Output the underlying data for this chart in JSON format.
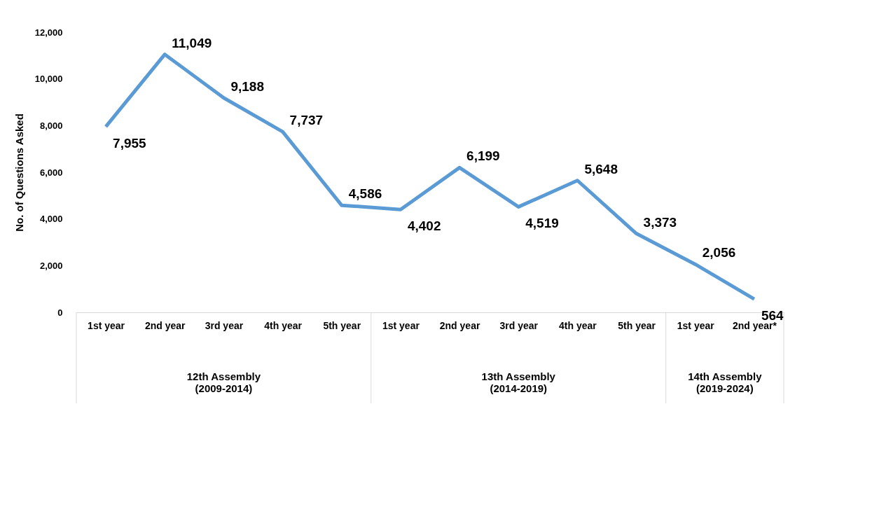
{
  "chart_data": {
    "type": "line",
    "categories": [
      "1st year",
      "2nd year",
      "3rd year",
      "4th year",
      "5th year",
      "1st year",
      "2nd year",
      "3rd year",
      "4th year",
      "5th year",
      "1st year",
      "2nd year*"
    ],
    "series": [
      {
        "color": "#5b9bd5",
        "values": [
          7955,
          11049,
          9188,
          7737,
          4586,
          4402,
          6199,
          4519,
          5648,
          3373,
          2056,
          564
        ],
        "value_labels": [
          "7,955",
          "11,049",
          "9,188",
          "7,737",
          "4,586",
          "4,402",
          "6,199",
          "4,519",
          "5,648",
          "3,373",
          "2,056",
          "564"
        ]
      }
    ],
    "ylabel": "No. of Questions Asked",
    "ylim": [
      0,
      12000
    ],
    "yticks": [
      0,
      {
        "value": 2000,
        "label": "2,000"
      },
      {
        "value": 4000,
        "label": "4,000"
      },
      {
        "value": 6000,
        "label": "6,000"
      },
      {
        "value": 8000,
        "label": "8,000"
      },
      {
        "value": 10000,
        "label": "10,000"
      },
      {
        "value": 12000,
        "label": "12,000"
      }
    ],
    "annotations": [
      "12th Assembly\n(2009-2014)",
      "13th Assembly\n(2014-2019)",
      "14th Assembly\n(2019-2024)"
    ],
    "grid": false,
    "marker": "none",
    "line_style": "solid"
  }
}
